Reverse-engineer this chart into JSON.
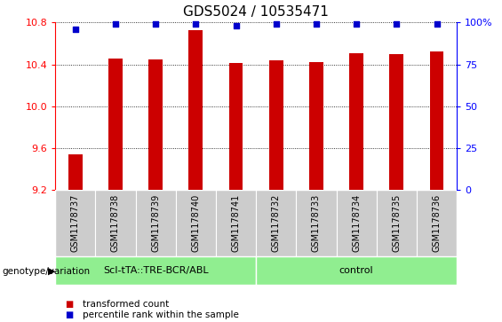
{
  "title": "GDS5024 / 10535471",
  "samples": [
    "GSM1178737",
    "GSM1178738",
    "GSM1178739",
    "GSM1178740",
    "GSM1178741",
    "GSM1178732",
    "GSM1178733",
    "GSM1178734",
    "GSM1178735",
    "GSM1178736"
  ],
  "bar_values": [
    9.54,
    10.46,
    10.45,
    10.73,
    10.41,
    10.44,
    10.42,
    10.51,
    10.5,
    10.52
  ],
  "percentile_values": [
    96,
    99,
    99,
    99,
    98,
    99,
    99,
    99,
    99,
    99
  ],
  "bar_color": "#cc0000",
  "percentile_color": "#0000cc",
  "ylim_left": [
    9.2,
    10.8
  ],
  "ylim_right": [
    0,
    100
  ],
  "yticks_left": [
    9.2,
    9.6,
    10.0,
    10.4,
    10.8
  ],
  "yticks_right": [
    0,
    25,
    50,
    75,
    100
  ],
  "ytick_labels_right": [
    "0",
    "25",
    "50",
    "75",
    "100%"
  ],
  "group1_label": "ScI-tTA::TRE-BCR/ABL",
  "group2_label": "control",
  "group1_color": "#90ee90",
  "group2_color": "#90ee90",
  "genotype_label": "genotype/variation",
  "legend_bar_label": "transformed count",
  "legend_pct_label": "percentile rank within the sample",
  "background_color": "#ffffff",
  "sample_bg_color": "#cccccc",
  "bar_width": 0.35,
  "title_fontsize": 11,
  "tick_fontsize": 8,
  "label_fontsize": 7,
  "geno_fontsize": 8
}
